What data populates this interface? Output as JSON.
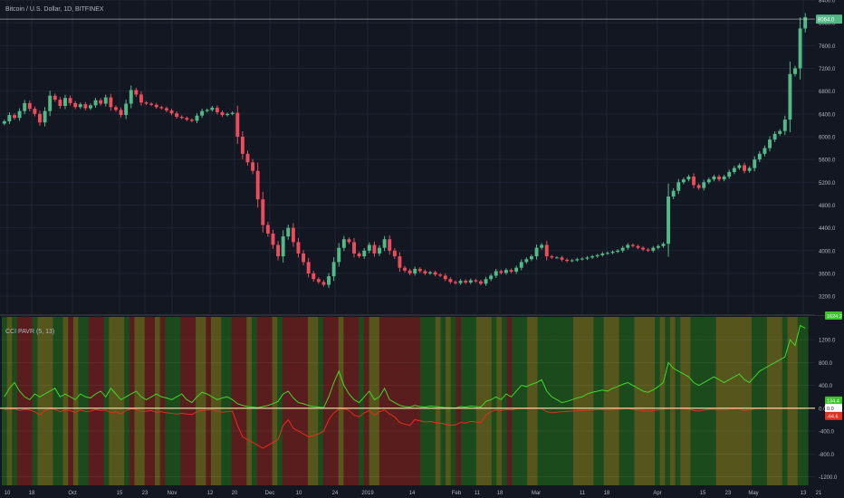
{
  "header": {
    "symbol_title": "Bitcoin / U.S. Dollar, 1D, BITFINEX",
    "indicator_title": "CCI PAVR (5, 13)"
  },
  "colors": {
    "background": "#131722",
    "grid": "#1e2433",
    "up": "#53b987",
    "down": "#eb4d5c",
    "axis_text": "#b2b5be",
    "pivot_line": "#e8d8a0",
    "price_label_bg": "#53b987",
    "band_green": "#1b4a1c",
    "band_red": "#5a1d1d",
    "band_olive": "#55551c",
    "osc_up_line": "#43d62c",
    "osc_down_line": "#e52e1e"
  },
  "chart_data": [
    {
      "type": "candlestick",
      "title": "Bitcoin / U.S. Dollar, 1D, BITFINEX",
      "ylim": [
        2900,
        8400
      ],
      "y_ticks": [
        3200,
        3600,
        4000,
        4400,
        4800,
        5200,
        5600,
        6000,
        6400,
        6800,
        7200,
        7600,
        8000,
        8400
      ],
      "last_price": "8064.0",
      "last_price_value": 8064,
      "x_labels": [
        "10",
        "18",
        "Oct",
        "15",
        "23",
        "Nov",
        "12",
        "20",
        "Dec",
        "10",
        "24",
        "2019",
        "14",
        "Feb",
        "11",
        "18",
        "Mar",
        "11",
        "18",
        "Apr",
        "15",
        "23",
        "May",
        "13",
        "21"
      ],
      "x_label_positions": [
        8,
        35,
        80,
        132,
        160,
        190,
        232,
        259,
        298,
        330,
        370,
        406,
        455,
        504,
        527,
        552,
        592,
        643,
        670,
        726,
        776,
        804,
        832,
        887,
        904
      ],
      "closes": [
        6270,
        6380,
        6330,
        6450,
        6590,
        6490,
        6400,
        6250,
        6450,
        6720,
        6650,
        6540,
        6680,
        6590,
        6520,
        6570,
        6500,
        6550,
        6640,
        6580,
        6690,
        6520,
        6470,
        6380,
        6580,
        6820,
        6740,
        6600,
        6580,
        6560,
        6520,
        6500,
        6460,
        6410,
        6350,
        6330,
        6300,
        6280,
        6370,
        6450,
        6470,
        6510,
        6430,
        6380,
        6400,
        6420,
        6000,
        5700,
        5550,
        5400,
        4900,
        4450,
        4300,
        4100,
        3900,
        4250,
        4400,
        4150,
        3950,
        3800,
        3600,
        3500,
        3450,
        3400,
        3550,
        3800,
        4050,
        4200,
        4150,
        3950,
        3900,
        4000,
        4100,
        3950,
        4050,
        4200,
        4000,
        3900,
        3700,
        3650,
        3600,
        3680,
        3640,
        3600,
        3620,
        3580,
        3560,
        3500,
        3450,
        3430,
        3470,
        3440,
        3480,
        3460,
        3420,
        3500,
        3560,
        3640,
        3610,
        3660,
        3630,
        3700,
        3800,
        3850,
        3900,
        4050,
        4100,
        3900,
        3880,
        3880,
        3840,
        3820,
        3830,
        3850,
        3860,
        3880,
        3900,
        3920,
        3950,
        3960,
        3980,
        4000,
        4050,
        4100,
        4080,
        4050,
        4020,
        4000,
        4050,
        4080,
        4120,
        4950,
        5050,
        5200,
        5250,
        5300,
        5150,
        5100,
        5200,
        5250,
        5300,
        5250,
        5300,
        5380,
        5450,
        5500,
        5400,
        5450,
        5600,
        5700,
        5800,
        5950,
        6050,
        6100,
        6300,
        7100,
        7200,
        7900,
        8100
      ]
    },
    {
      "type": "area",
      "title": "CCI PAVR (5, 13)",
      "ylim": [
        -1350,
        1600
      ],
      "y_ticks": [
        1200,
        800,
        400,
        0,
        -400,
        -800,
        -1200
      ],
      "labels": {
        "top": "1624.2",
        "up": "134.4",
        "zero": "0.0",
        "down": "-64.6"
      },
      "label_values": {
        "top": 1624.2,
        "up": 134.4,
        "zero": 0,
        "down": -64.6
      },
      "band_states": "gogrrrgoooggoroggrrrgooogroorrorgggrrroorooggrrrogrrrogrrrrroogrrrorrrgroorrrrrrrrgggogogrgggooogogrgggoogggggggooooggooogggoooogogogoogggggooooooogggooogoogg",
      "upper_values": [
        200,
        350,
        450,
        300,
        200,
        150,
        250,
        200,
        250,
        300,
        350,
        200,
        250,
        200,
        150,
        250,
        200,
        180,
        250,
        300,
        200,
        350,
        250,
        150,
        200,
        250,
        300,
        200,
        150,
        200,
        250,
        200,
        180,
        150,
        200,
        250,
        150,
        100,
        200,
        280,
        250,
        200,
        150,
        180,
        200,
        150,
        80,
        50,
        30,
        20,
        10,
        30,
        50,
        80,
        120,
        250,
        300,
        180,
        100,
        80,
        50,
        30,
        20,
        10,
        200,
        450,
        650,
        400,
        250,
        150,
        100,
        200,
        300,
        150,
        200,
        350,
        150,
        100,
        50,
        30,
        20,
        50,
        30,
        20,
        40,
        30,
        20,
        10,
        10,
        5,
        30,
        20,
        40,
        30,
        20,
        120,
        150,
        200,
        150,
        250,
        200,
        300,
        400,
        380,
        420,
        450,
        500,
        300,
        200,
        150,
        100,
        120,
        150,
        180,
        200,
        250,
        280,
        300,
        320,
        300,
        350,
        380,
        420,
        450,
        400,
        350,
        300,
        280,
        320,
        380,
        450,
        800,
        700,
        650,
        600,
        550,
        450,
        400,
        450,
        500,
        550,
        500,
        450,
        500,
        550,
        600,
        500,
        450,
        550,
        650,
        700,
        750,
        800,
        850,
        900,
        1200,
        1100,
        1450,
        1400
      ],
      "lower_values": [
        -30,
        -20,
        -10,
        -40,
        -20,
        -30,
        -60,
        -120,
        -40,
        -10,
        -20,
        -60,
        -30,
        -40,
        -70,
        -30,
        -60,
        -50,
        -20,
        -40,
        -30,
        -80,
        -60,
        -100,
        -40,
        -10,
        -20,
        -60,
        -50,
        -40,
        -70,
        -60,
        -80,
        -90,
        -100,
        -90,
        -100,
        -110,
        -60,
        -40,
        -30,
        -20,
        -50,
        -70,
        -60,
        -50,
        -300,
        -500,
        -550,
        -600,
        -650,
        -700,
        -650,
        -600,
        -550,
        -300,
        -200,
        -350,
        -400,
        -450,
        -500,
        -480,
        -450,
        -400,
        -200,
        -80,
        -20,
        -10,
        -40,
        -120,
        -150,
        -80,
        -40,
        -120,
        -60,
        -30,
        -100,
        -150,
        -250,
        -280,
        -300,
        -200,
        -220,
        -240,
        -230,
        -250,
        -260,
        -280,
        -300,
        -290,
        -250,
        -260,
        -230,
        -240,
        -250,
        -120,
        -60,
        -30,
        -40,
        -20,
        -30,
        -10,
        -5,
        -10,
        -5,
        -5,
        -5,
        -60,
        -80,
        -70,
        -60,
        -55,
        -50,
        -45,
        -40,
        -35,
        -30,
        -25,
        -20,
        -30,
        -20,
        -15,
        -10,
        -5,
        -20,
        -30,
        -40,
        -50,
        -40,
        -30,
        -20,
        -5,
        -5,
        -5,
        -10,
        -15,
        -40,
        -50,
        -30,
        -20,
        -15,
        -25,
        -30,
        -15,
        -10,
        -5,
        -40,
        -30,
        -10,
        -5,
        -5,
        -5,
        -5,
        -5,
        -5,
        -5,
        -5,
        -5,
        -5
      ]
    }
  ]
}
